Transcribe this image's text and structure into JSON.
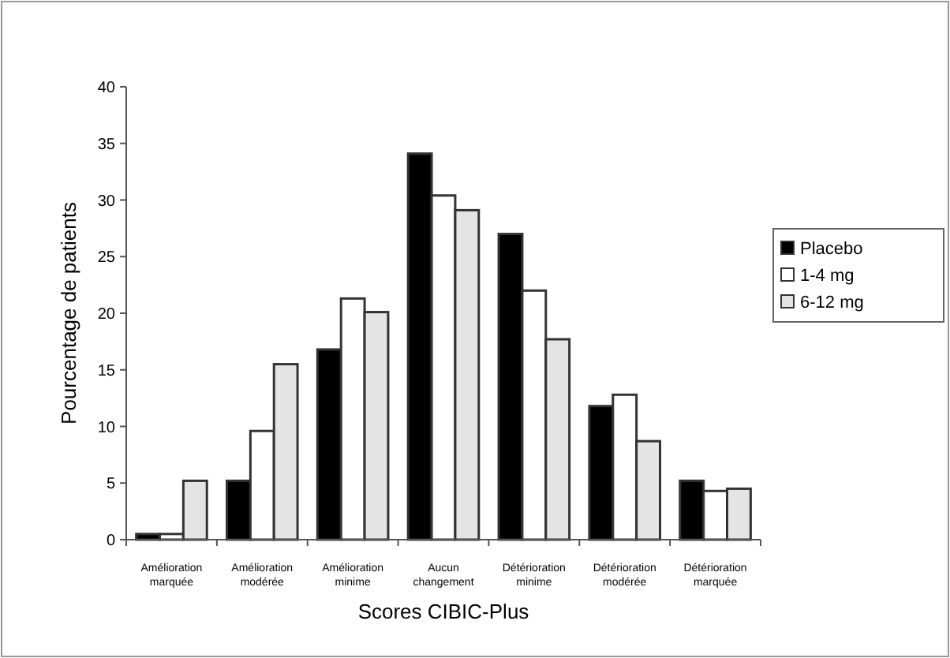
{
  "chart_data": {
    "type": "bar",
    "xlabel": "Scores CIBIC-Plus",
    "ylabel": "Pourcentage de patients",
    "categories": [
      "Amélioration marquée",
      "Amélioration modérée",
      "Amélioration minime",
      "Aucun changement",
      "Détérioration minime",
      "Détérioration modérée",
      "Détérioration marquée"
    ],
    "series": [
      {
        "name": "Placebo",
        "color": "#000000",
        "values": [
          0.5,
          5.2,
          16.8,
          34.1,
          27.0,
          11.8,
          5.2
        ]
      },
      {
        "name": "1-4 mg",
        "color": "#ffffff",
        "values": [
          0.5,
          9.6,
          21.3,
          30.4,
          22.0,
          12.8,
          4.3
        ]
      },
      {
        "name": "6-12 mg",
        "color": "#e4e4e4",
        "values": [
          5.2,
          15.5,
          20.1,
          29.1,
          17.7,
          8.7,
          4.5
        ]
      }
    ],
    "ylim": [
      0,
      40
    ],
    "yticks": [
      0,
      5,
      10,
      15,
      20,
      25,
      30,
      35,
      40
    ],
    "legend": "right",
    "grid": false
  }
}
